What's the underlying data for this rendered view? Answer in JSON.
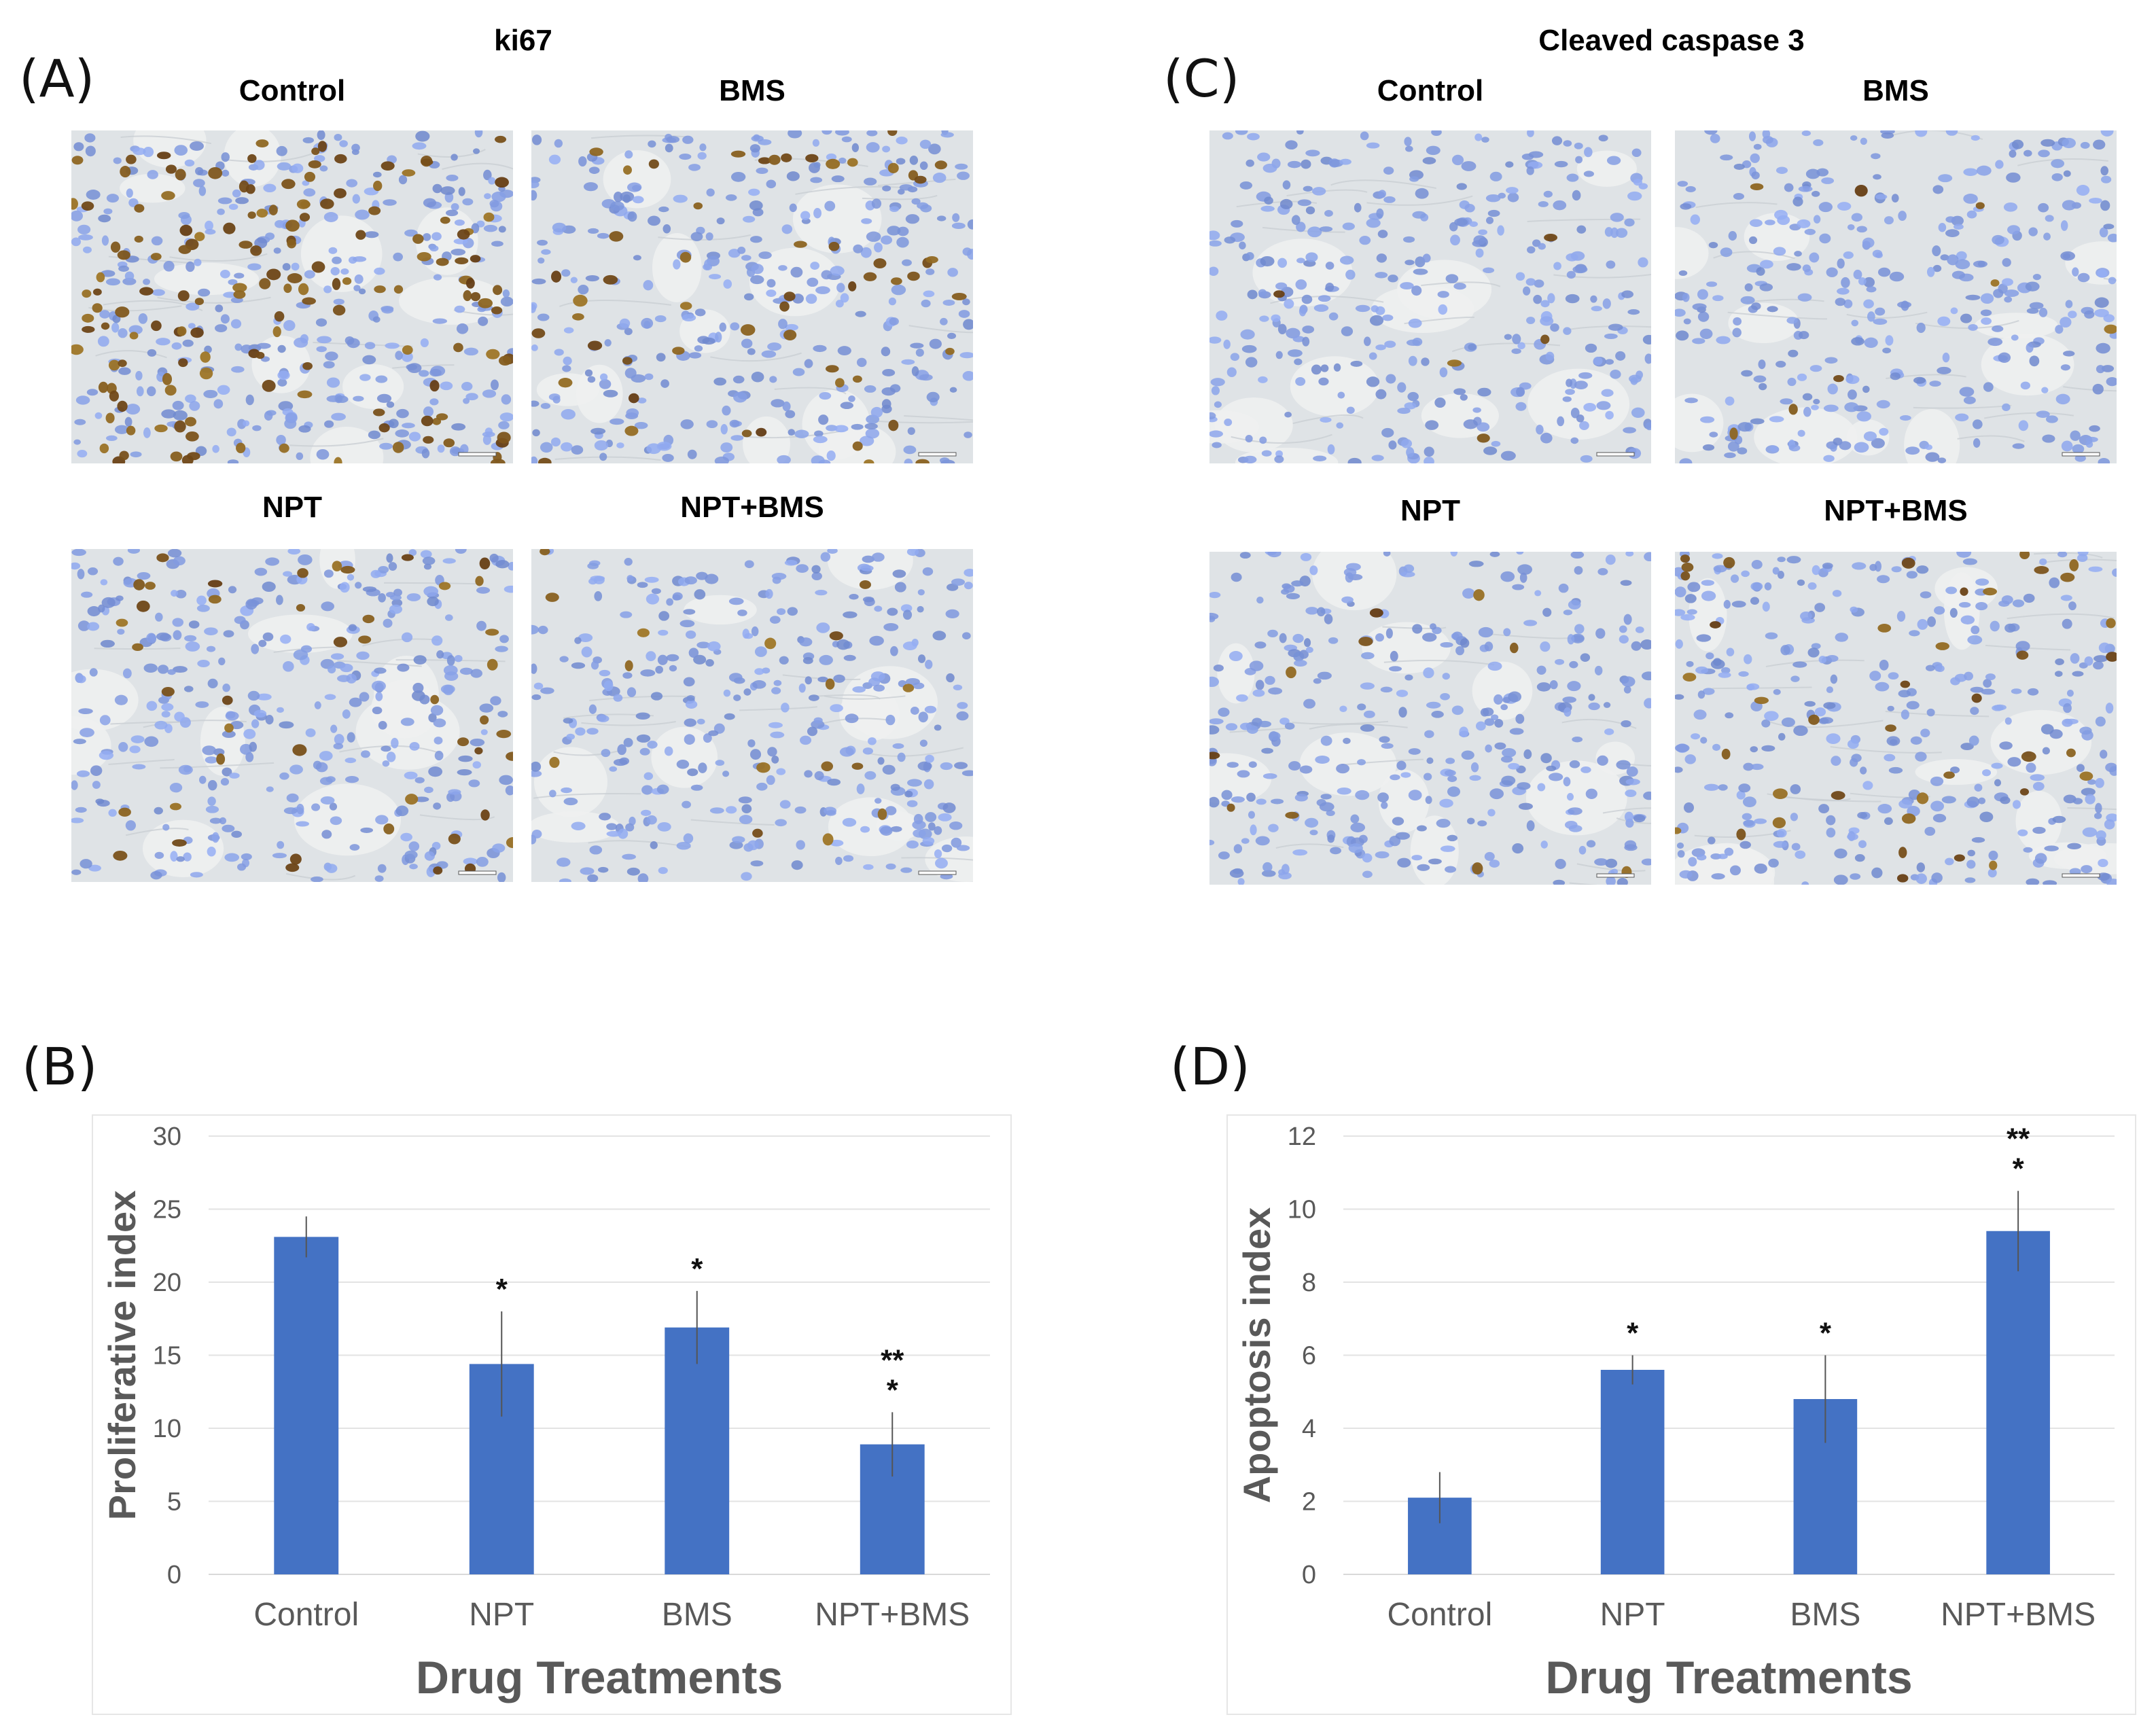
{
  "panels": {
    "A": {
      "letter": "(A)",
      "stain": "ki67",
      "images": [
        {
          "label": "Control",
          "positive_cells": 150
        },
        {
          "label": "BMS",
          "positive_cells": 55
        },
        {
          "label": "NPT",
          "positive_cells": 45
        },
        {
          "label": "NPT+BMS",
          "positive_cells": 16
        }
      ]
    },
    "C": {
      "letter": "(C)",
      "stain": "Cleaved caspase 3",
      "images": [
        {
          "label": "Control",
          "positive_cells": 5
        },
        {
          "label": "BMS",
          "positive_cells": 8
        },
        {
          "label": "NPT",
          "positive_cells": 10
        },
        {
          "label": "NPT+BMS",
          "positive_cells": 40
        }
      ]
    },
    "B": {
      "letter": "(B)"
    },
    "D": {
      "letter": "(D)"
    }
  },
  "colors": {
    "bar": "#4472c4",
    "grid": "#e3e3e3",
    "axis_text": "#595959",
    "tissue_bg": "#dfe3e6",
    "hematoxylin": "#7f9fd0",
    "dab": "#6b3a17"
  },
  "chart_data": [
    {
      "type": "bar",
      "panel": "B",
      "categories": [
        "Control",
        "NPT",
        "BMS",
        "NPT+BMS"
      ],
      "values": [
        23.1,
        14.4,
        16.9,
        8.9
      ],
      "errors": [
        1.4,
        3.6,
        2.5,
        2.2
      ],
      "significance": [
        [],
        [
          "*"
        ],
        [
          "*"
        ],
        [
          "**",
          "*"
        ]
      ],
      "xlabel": "Drug Treatments",
      "ylabel": "Proliferative index",
      "ylim": [
        0,
        30
      ],
      "yticks": [
        0,
        5,
        10,
        15,
        20,
        25,
        30
      ],
      "grid": true
    },
    {
      "type": "bar",
      "panel": "D",
      "categories": [
        "Control",
        "NPT",
        "BMS",
        "NPT+BMS"
      ],
      "values": [
        2.1,
        5.6,
        4.8,
        9.4
      ],
      "errors": [
        0.7,
        0.4,
        1.2,
        1.1
      ],
      "significance": [
        [],
        [
          "*"
        ],
        [
          "*"
        ],
        [
          "**",
          "*"
        ]
      ],
      "xlabel": "Drug Treatments",
      "ylabel": "Apoptosis index",
      "ylim": [
        0,
        12
      ],
      "yticks": [
        0,
        2,
        4,
        6,
        8,
        10,
        12
      ],
      "grid": true
    }
  ]
}
